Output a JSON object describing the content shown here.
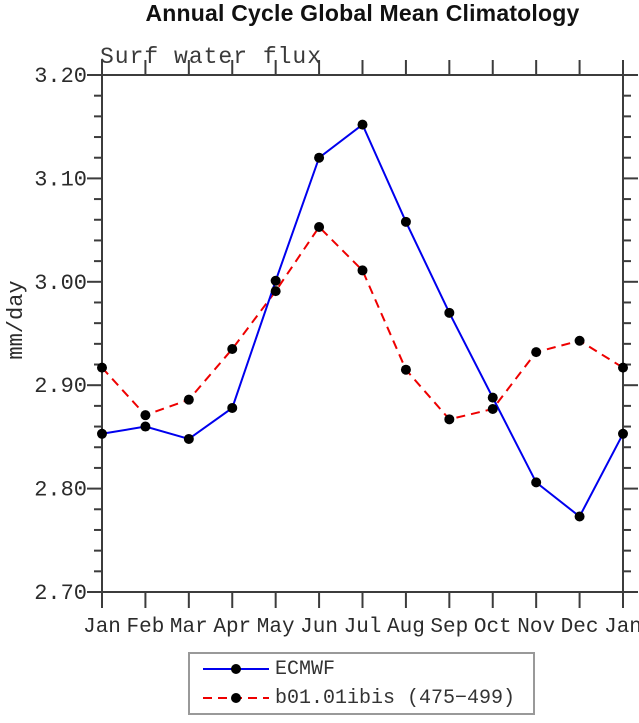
{
  "chart_data": {
    "type": "line",
    "title": "Annual Cycle Global Mean Climatology",
    "subtitle": "Surf water flux",
    "ylabel": "mm/day",
    "xlabel": "",
    "x_tick_labels": [
      "Jan",
      "Feb",
      "Mar",
      "Apr",
      "May",
      "Jun",
      "Jul",
      "Aug",
      "Sep",
      "Oct",
      "Nov",
      "Dec",
      "Jan"
    ],
    "ylim": [
      2.7,
      3.2
    ],
    "y_major_ticks": [
      3.2,
      3.1,
      3.0,
      2.9,
      2.8,
      2.7
    ],
    "y_tick_labels": [
      "3.20",
      "3.10",
      "3.00",
      "2.90",
      "2.80",
      "2.70"
    ],
    "y_minor_step": 0.02,
    "grid": "off",
    "legend_position": "bottom-center-boxed",
    "axis_color": "#3c3c3c",
    "marker_color": "#000000",
    "series": [
      {
        "name": "ECMWF",
        "color": "#0000ee",
        "line_style": "solid",
        "marker": "filled-circle",
        "values": [
          2.853,
          2.86,
          2.848,
          2.878,
          3.001,
          3.12,
          3.152,
          3.058,
          2.97,
          2.888,
          2.806,
          2.773,
          2.853
        ]
      },
      {
        "name": "b01.01ibis (475−499)",
        "color": "#ee0000",
        "line_style": "dashed",
        "marker": "filled-circle",
        "values": [
          2.917,
          2.871,
          2.886,
          2.935,
          2.991,
          3.053,
          3.011,
          2.915,
          2.867,
          2.877,
          2.932,
          2.943,
          2.917
        ]
      }
    ]
  }
}
